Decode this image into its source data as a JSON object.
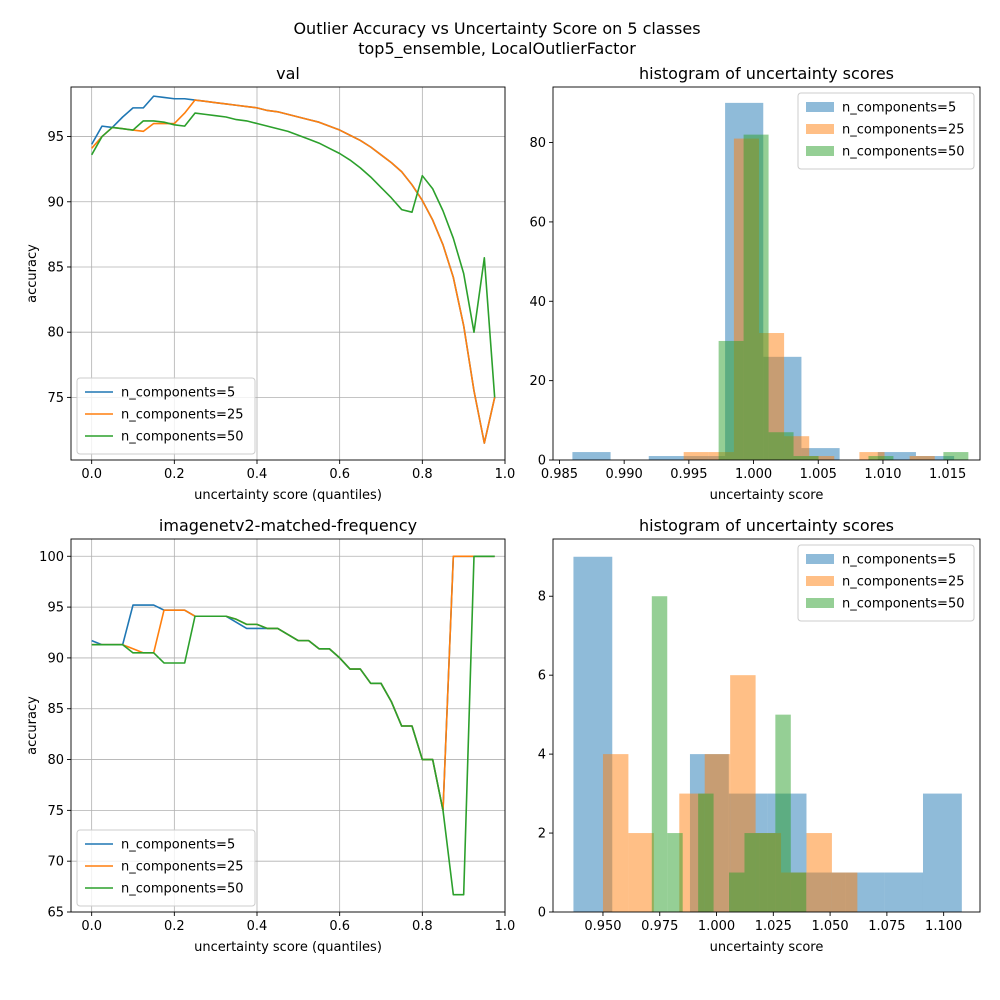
{
  "figure": {
    "suptitle_line1": "Outlier Accuracy vs Uncertainty Score on 5 classes",
    "suptitle_line2": "top5_ensemble, LocalOutlierFactor"
  },
  "colors": {
    "n5": "#1f77b4",
    "n25": "#ff7f0e",
    "n50": "#2ca02c"
  },
  "chart_data": [
    {
      "id": "val_accuracy",
      "type": "line",
      "title": "val",
      "xlabel": "uncertainty score (quantiles)",
      "ylabel": "accuracy",
      "xlim": [
        -0.05,
        1.0
      ],
      "ylim": [
        70.2,
        98.8
      ],
      "xticks": [
        0.0,
        0.2,
        0.4,
        0.6,
        0.8,
        1.0
      ],
      "xticklabels": [
        "0.0",
        "0.2",
        "0.4",
        "0.6",
        "0.8",
        "1.0"
      ],
      "yticks": [
        75,
        80,
        85,
        90,
        95
      ],
      "yticklabels": [
        "75",
        "80",
        "85",
        "90",
        "95"
      ],
      "grid": true,
      "legend": "lower left",
      "series": [
        {
          "name": "n_components=5",
          "color_key": "n5",
          "x": [
            0.0,
            0.025,
            0.05,
            0.075,
            0.1,
            0.125,
            0.15,
            0.175,
            0.2,
            0.225,
            0.25,
            0.275,
            0.3,
            0.325,
            0.35,
            0.375,
            0.4,
            0.425,
            0.45,
            0.475,
            0.5,
            0.525,
            0.55,
            0.575,
            0.6,
            0.625,
            0.65,
            0.675,
            0.7,
            0.725,
            0.75,
            0.775,
            0.8,
            0.825,
            0.85,
            0.875,
            0.9,
            0.925,
            0.95,
            0.975
          ],
          "y": [
            94.4,
            95.8,
            95.7,
            96.5,
            97.2,
            97.2,
            98.1,
            98.0,
            97.9,
            97.9,
            97.8,
            97.7,
            97.6,
            97.5,
            97.4,
            97.3,
            97.2,
            97.0,
            96.9,
            96.7,
            96.5,
            96.3,
            96.1,
            95.8,
            95.5,
            95.1,
            94.7,
            94.2,
            93.6,
            93.0,
            92.3,
            91.3,
            90.1,
            88.6,
            86.7,
            84.2,
            80.5,
            75.5,
            71.5,
            75.0
          ]
        },
        {
          "name": "n_components=25",
          "color_key": "n25",
          "x": [
            0.0,
            0.025,
            0.05,
            0.075,
            0.1,
            0.125,
            0.15,
            0.175,
            0.2,
            0.225,
            0.25,
            0.275,
            0.3,
            0.325,
            0.35,
            0.375,
            0.4,
            0.425,
            0.45,
            0.475,
            0.5,
            0.525,
            0.55,
            0.575,
            0.6,
            0.625,
            0.65,
            0.675,
            0.7,
            0.725,
            0.75,
            0.775,
            0.8,
            0.825,
            0.85,
            0.875,
            0.9,
            0.925,
            0.95,
            0.975
          ],
          "y": [
            94.1,
            95.0,
            95.7,
            95.6,
            95.5,
            95.4,
            96.0,
            96.0,
            96.0,
            96.8,
            97.8,
            97.7,
            97.6,
            97.5,
            97.4,
            97.3,
            97.2,
            97.0,
            96.9,
            96.7,
            96.5,
            96.3,
            96.1,
            95.8,
            95.5,
            95.1,
            94.7,
            94.2,
            93.6,
            93.0,
            92.3,
            91.3,
            90.1,
            88.6,
            86.7,
            84.2,
            80.5,
            75.5,
            71.5,
            75.0
          ]
        },
        {
          "name": "n_components=50",
          "color_key": "n50",
          "x": [
            0.0,
            0.025,
            0.05,
            0.075,
            0.1,
            0.125,
            0.15,
            0.175,
            0.2,
            0.225,
            0.25,
            0.275,
            0.3,
            0.325,
            0.35,
            0.375,
            0.4,
            0.425,
            0.45,
            0.475,
            0.5,
            0.525,
            0.55,
            0.575,
            0.6,
            0.625,
            0.65,
            0.675,
            0.7,
            0.725,
            0.75,
            0.775,
            0.8,
            0.825,
            0.85,
            0.875,
            0.9,
            0.925,
            0.95,
            0.975
          ],
          "y": [
            93.6,
            95.0,
            95.7,
            95.6,
            95.5,
            96.2,
            96.2,
            96.1,
            95.9,
            95.8,
            96.8,
            96.7,
            96.6,
            96.5,
            96.3,
            96.2,
            96.0,
            95.8,
            95.6,
            95.4,
            95.1,
            94.8,
            94.5,
            94.1,
            93.7,
            93.2,
            92.6,
            91.9,
            91.1,
            90.3,
            89.4,
            89.2,
            92.0,
            91.0,
            89.3,
            87.2,
            84.5,
            80.0,
            85.7,
            75.0
          ]
        }
      ]
    },
    {
      "id": "val_histogram",
      "type": "bar",
      "title": "histogram of uncertainty scores",
      "xlabel": "uncertainty score",
      "ylabel": "",
      "xlim": [
        0.9845,
        1.0175
      ],
      "ylim": [
        0,
        94
      ],
      "xticks": [
        0.985,
        0.99,
        0.995,
        1.0,
        1.005,
        1.01,
        1.015
      ],
      "xticklabels": [
        "0.985",
        "0.990",
        "0.995",
        "1.000",
        "1.005",
        "1.010",
        "1.015"
      ],
      "yticks": [
        0,
        20,
        40,
        60,
        80
      ],
      "yticklabels": [
        "0",
        "20",
        "40",
        "60",
        "80"
      ],
      "grid": false,
      "legend": "upper right",
      "bar_alpha": 0.5,
      "series": [
        {
          "name": "n_components=5",
          "color_key": "n5",
          "edges": [
            0.986,
            0.98895,
            0.9919,
            0.99485,
            0.9978,
            1.00075,
            1.0037,
            1.00665,
            1.0096,
            1.01255,
            1.0155
          ],
          "counts": [
            2,
            0,
            1,
            1,
            90,
            26,
            3,
            0,
            2,
            1
          ]
        },
        {
          "name": "n_components=25",
          "color_key": "n25",
          "edges": [
            0.9946,
            0.99654,
            0.99848,
            1.00042,
            1.00236,
            1.0043,
            1.00624,
            1.00818,
            1.01012,
            1.01206,
            1.014
          ],
          "counts": [
            2,
            2,
            81,
            32,
            6,
            1,
            0,
            2,
            0,
            1
          ]
        },
        {
          "name": "n_components=50",
          "color_key": "n50",
          "edges": [
            0.9973,
            0.99923,
            1.00116,
            1.00309,
            1.00502,
            1.00695,
            1.00888,
            1.01081,
            1.01274,
            1.01467,
            1.0166
          ],
          "counts": [
            30,
            82,
            7,
            1,
            0,
            0,
            1,
            0,
            0,
            2
          ]
        }
      ]
    },
    {
      "id": "v2_accuracy",
      "type": "line",
      "title": "imagenetv2-matched-frequency",
      "xlabel": "uncertainty score (quantiles)",
      "ylabel": "accuracy",
      "xlim": [
        -0.05,
        1.0
      ],
      "ylim": [
        65.0,
        101.7
      ],
      "xticks": [
        0.0,
        0.2,
        0.4,
        0.6,
        0.8,
        1.0
      ],
      "xticklabels": [
        "0.0",
        "0.2",
        "0.4",
        "0.6",
        "0.8",
        "1.0"
      ],
      "yticks": [
        65,
        70,
        75,
        80,
        85,
        90,
        95,
        100
      ],
      "yticklabels": [
        "65",
        "70",
        "75",
        "80",
        "85",
        "90",
        "95",
        "100"
      ],
      "grid": true,
      "legend": "lower left",
      "series": [
        {
          "name": "n_components=5",
          "color_key": "n5",
          "x": [
            0.0,
            0.025,
            0.05,
            0.075,
            0.1,
            0.125,
            0.15,
            0.175,
            0.2,
            0.225,
            0.25,
            0.275,
            0.3,
            0.325,
            0.35,
            0.375,
            0.4,
            0.425,
            0.45,
            0.475,
            0.5,
            0.525,
            0.55,
            0.575,
            0.6,
            0.625,
            0.65,
            0.675,
            0.7,
            0.725,
            0.75,
            0.775,
            0.8,
            0.825,
            0.85,
            0.875,
            0.9,
            0.925,
            0.95,
            0.975
          ],
          "y": [
            91.7,
            91.3,
            91.3,
            91.3,
            95.2,
            95.2,
            95.2,
            94.7,
            94.7,
            94.7,
            94.1,
            94.1,
            94.1,
            94.1,
            93.5,
            92.9,
            92.9,
            92.9,
            92.9,
            92.3,
            91.7,
            91.7,
            90.9,
            90.9,
            90.0,
            88.9,
            88.9,
            87.5,
            87.5,
            85.7,
            83.3,
            83.3,
            80.0,
            80.0,
            75.0,
            100.0,
            100.0,
            100.0,
            100.0,
            100.0
          ]
        },
        {
          "name": "n_components=25",
          "color_key": "n25",
          "x": [
            0.0,
            0.025,
            0.05,
            0.075,
            0.1,
            0.125,
            0.15,
            0.175,
            0.2,
            0.225,
            0.25,
            0.275,
            0.3,
            0.325,
            0.35,
            0.375,
            0.4,
            0.425,
            0.45,
            0.475,
            0.5,
            0.525,
            0.55,
            0.575,
            0.6,
            0.625,
            0.65,
            0.675,
            0.7,
            0.725,
            0.75,
            0.775,
            0.8,
            0.825,
            0.85,
            0.875,
            0.9,
            0.925,
            0.95,
            0.975
          ],
          "y": [
            91.3,
            91.3,
            91.3,
            91.3,
            90.9,
            90.5,
            90.5,
            94.7,
            94.7,
            94.7,
            94.1,
            94.1,
            94.1,
            94.1,
            93.8,
            93.3,
            93.3,
            92.9,
            92.9,
            92.3,
            91.7,
            91.7,
            90.9,
            90.9,
            90.0,
            88.9,
            88.9,
            87.5,
            87.5,
            85.7,
            83.3,
            83.3,
            80.0,
            80.0,
            75.0,
            100.0,
            100.0,
            100.0,
            100.0,
            100.0
          ]
        },
        {
          "name": "n_components=50",
          "color_key": "n50",
          "x": [
            0.0,
            0.025,
            0.05,
            0.075,
            0.1,
            0.125,
            0.15,
            0.175,
            0.2,
            0.225,
            0.25,
            0.275,
            0.3,
            0.325,
            0.35,
            0.375,
            0.4,
            0.425,
            0.45,
            0.475,
            0.5,
            0.525,
            0.55,
            0.575,
            0.6,
            0.625,
            0.65,
            0.675,
            0.7,
            0.725,
            0.75,
            0.775,
            0.8,
            0.825,
            0.85,
            0.875,
            0.9,
            0.925,
            0.95,
            0.975
          ],
          "y": [
            91.3,
            91.3,
            91.3,
            91.3,
            90.5,
            90.5,
            90.5,
            89.5,
            89.5,
            89.5,
            94.1,
            94.1,
            94.1,
            94.1,
            93.8,
            93.3,
            93.3,
            92.9,
            92.9,
            92.3,
            91.7,
            91.7,
            90.9,
            90.9,
            90.0,
            88.9,
            88.9,
            87.5,
            87.5,
            85.7,
            83.3,
            83.3,
            80.0,
            80.0,
            75.0,
            66.7,
            66.7,
            100.0,
            100.0,
            100.0
          ]
        }
      ]
    },
    {
      "id": "v2_histogram",
      "type": "bar",
      "title": "histogram of uncertainty scores",
      "xlabel": "uncertainty score",
      "ylabel": "",
      "xlim": [
        0.928,
        1.116
      ],
      "ylim": [
        0,
        9.45
      ],
      "xticks": [
        0.95,
        0.975,
        1.0,
        1.025,
        1.05,
        1.075,
        1.1
      ],
      "xticklabels": [
        "0.950",
        "0.975",
        "1.000",
        "1.025",
        "1.050",
        "1.075",
        "1.100"
      ],
      "yticks": [
        0,
        2,
        4,
        6,
        8
      ],
      "yticklabels": [
        "0",
        "2",
        "4",
        "6",
        "8"
      ],
      "grid": false,
      "legend": "upper right",
      "bar_alpha": 0.5,
      "series": [
        {
          "name": "n_components=5",
          "color_key": "n5",
          "edges": [
            0.937,
            0.9541,
            0.9712,
            0.9883,
            1.0054,
            1.0225,
            1.0396,
            1.0567,
            1.0738,
            1.0909,
            1.108
          ],
          "counts": [
            9,
            0,
            0,
            4,
            3,
            3,
            1,
            1,
            1,
            3
          ]
        },
        {
          "name": "n_components=25",
          "color_key": "n25",
          "edges": [
            0.95,
            0.9612,
            0.9724,
            0.9836,
            0.9948,
            1.006,
            1.0172,
            1.0284,
            1.0396,
            1.0508,
            1.062
          ],
          "counts": [
            4,
            2,
            0,
            3,
            4,
            6,
            2,
            1,
            2,
            1
          ]
        },
        {
          "name": "n_components=50",
          "color_key": "n50",
          "edges": [
            0.9715,
            0.9783,
            0.9851,
            0.9919,
            0.9987,
            1.0055,
            1.0123,
            1.0191,
            1.0259,
            1.0327,
            1.0395
          ],
          "counts": [
            8,
            2,
            0,
            3,
            0,
            1,
            2,
            2,
            5,
            1
          ]
        }
      ]
    }
  ]
}
